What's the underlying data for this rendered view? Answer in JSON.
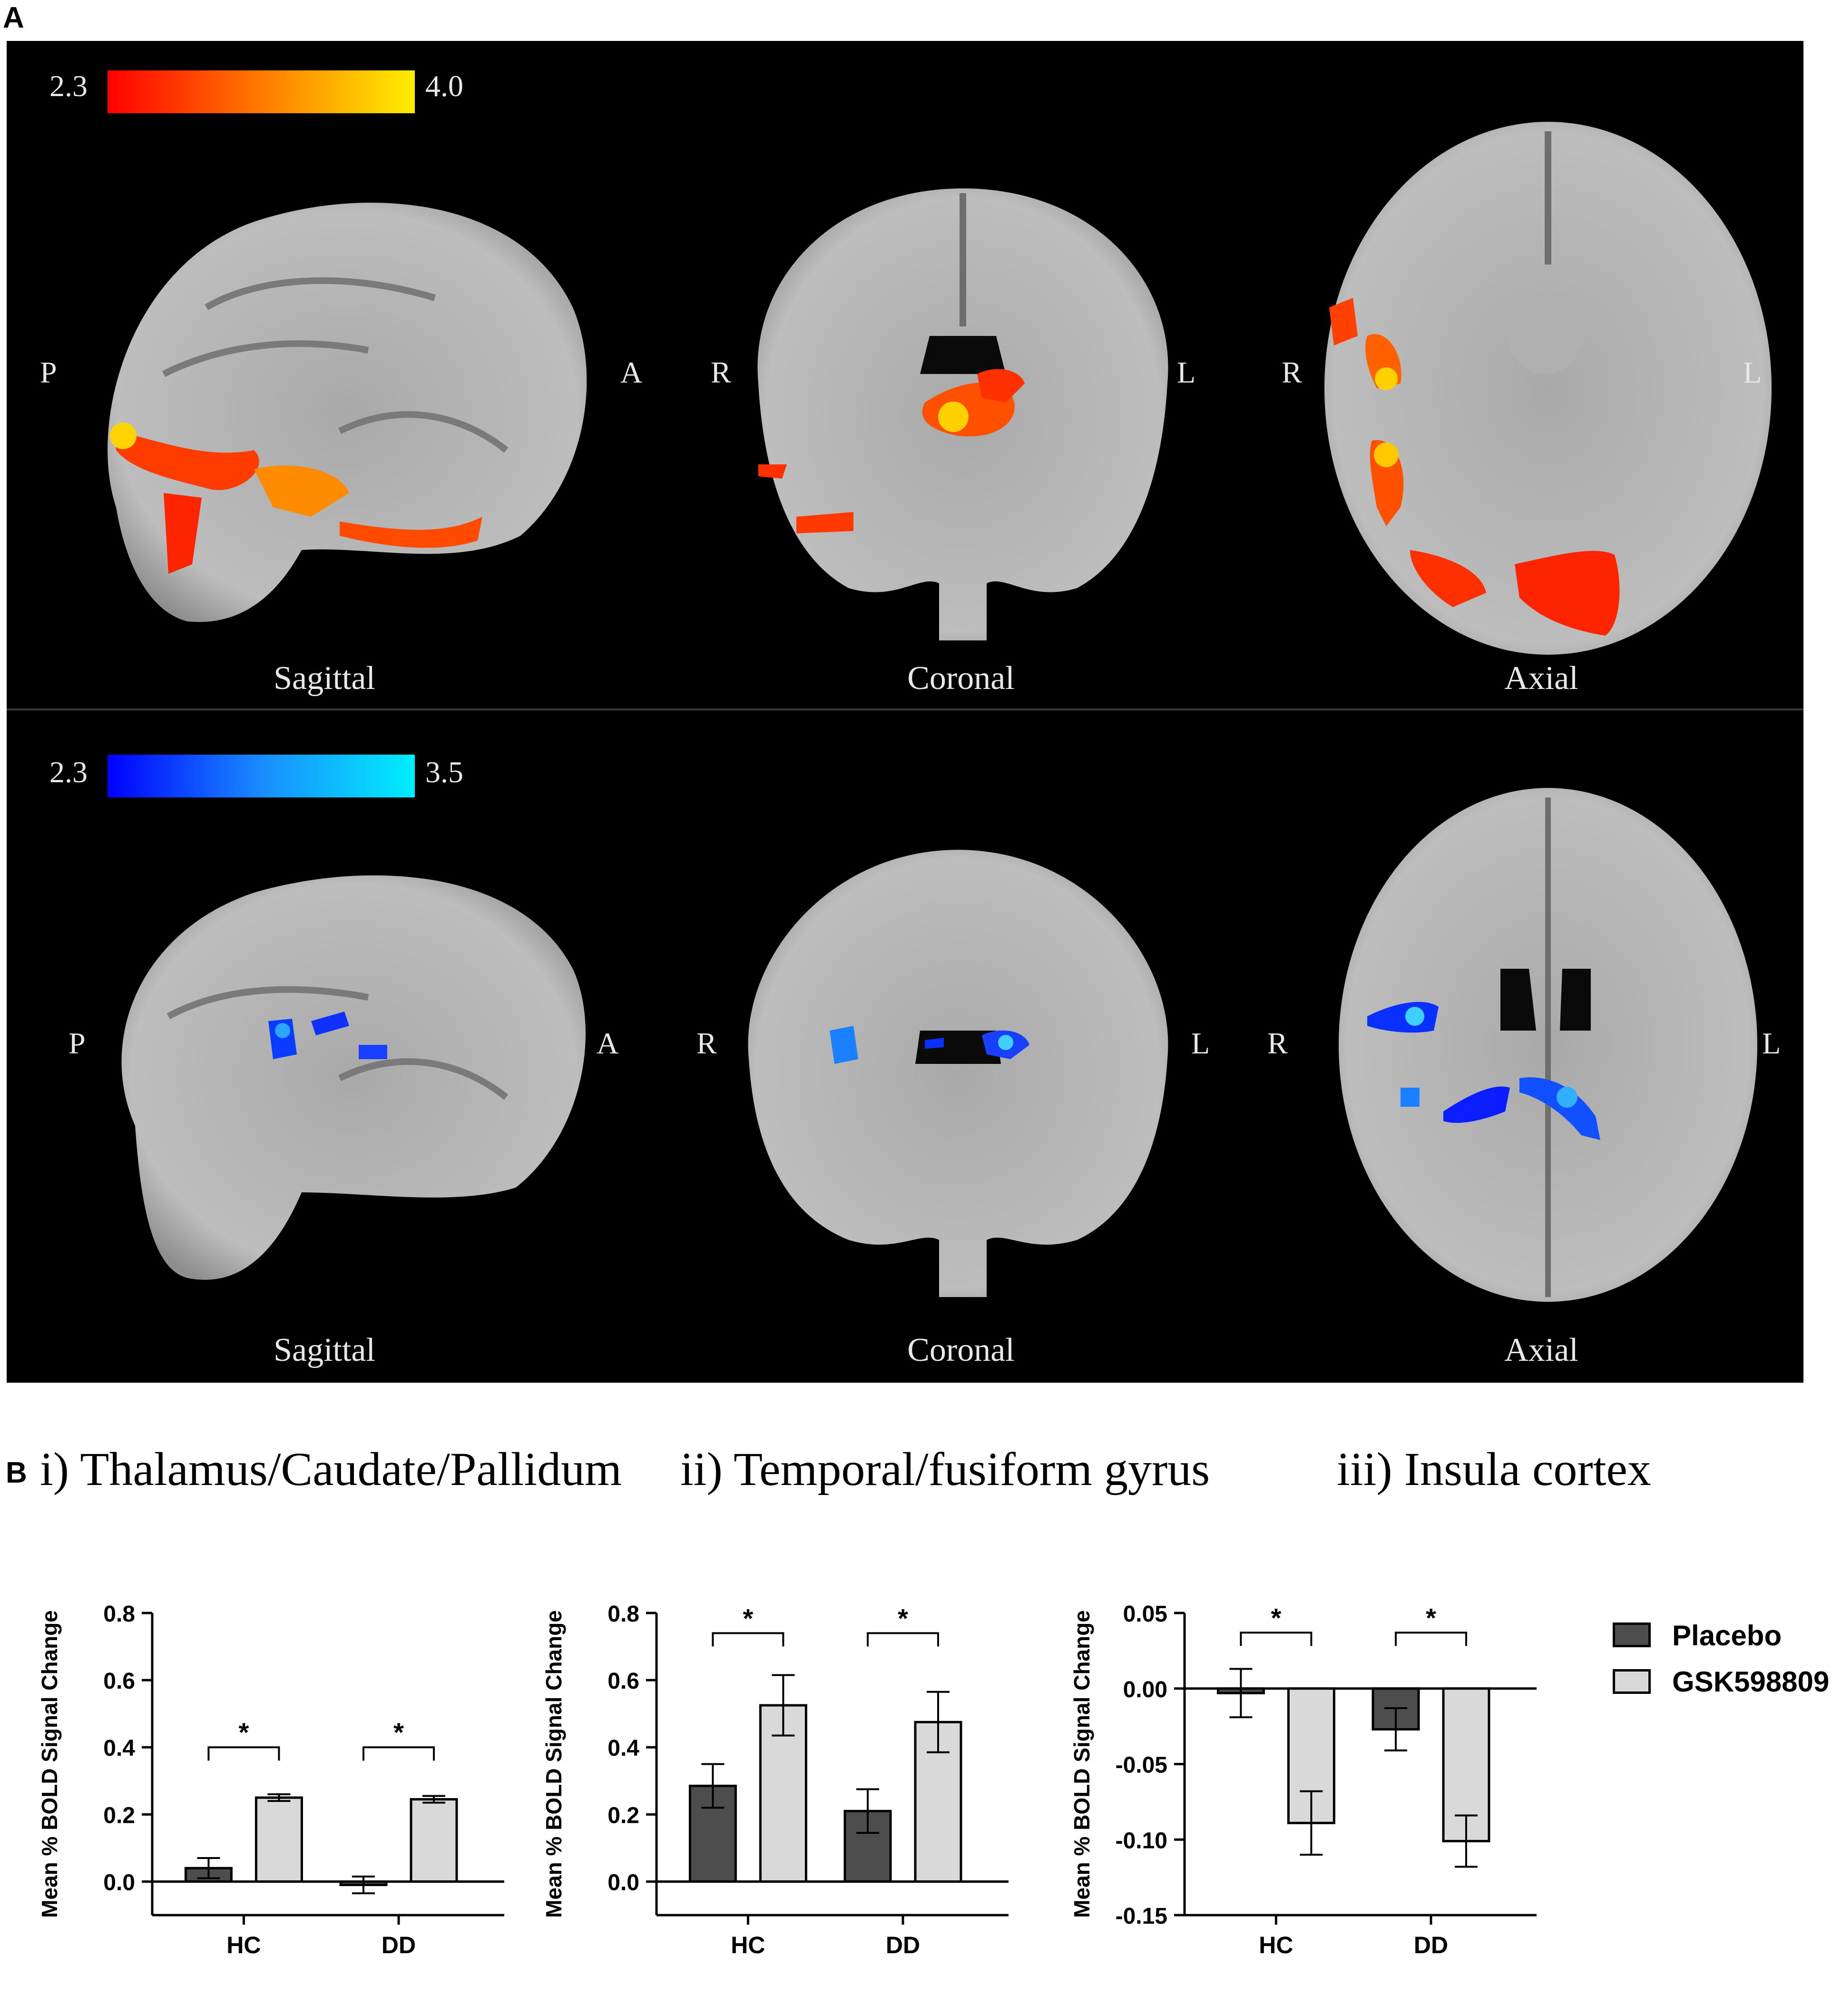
{
  "panel_a": {
    "letter": "A",
    "colorbar_top": {
      "min": "2.3",
      "max": "4.0",
      "colors": [
        "#ff0000",
        "#ff7a00",
        "#ffee00"
      ]
    },
    "colorbar_bottom": {
      "min": "2.3",
      "max": "3.5",
      "colors": [
        "#0000ff",
        "#1a8cff",
        "#00eeff"
      ]
    },
    "views": {
      "sagittal": "Sagittal",
      "coronal": "Coronal",
      "axial": "Axial"
    },
    "orient": {
      "p": "P",
      "a": "A",
      "r": "R",
      "l": "L"
    }
  },
  "panel_b": {
    "letter": "B",
    "titles": [
      "i) Thalamus/Caudate/Pallidum",
      "ii) Temporal/fusiform gyrus",
      "iii) Insula cortex"
    ],
    "legend": [
      {
        "label": "Placebo",
        "color": "#4d4d4d"
      },
      {
        "label": "GSK598809",
        "color": "#d9d9d9"
      }
    ]
  },
  "chart_data": [
    {
      "type": "bar",
      "title": "i) Thalamus/Caudate/Pallidum",
      "ylabel": "Mean % BOLD Signal Change",
      "categories": [
        "HC",
        "DD"
      ],
      "ylim": [
        -0.1,
        0.8
      ],
      "yticks": [
        "0.0",
        "0.2",
        "0.4",
        "0.6",
        "0.8"
      ],
      "series": [
        {
          "name": "Placebo",
          "values": [
            0.04,
            -0.01
          ],
          "errors": [
            0.03,
            0.025
          ]
        },
        {
          "name": "GSK598809",
          "values": [
            0.25,
            0.245
          ],
          "errors": [
            0.01,
            0.01
          ]
        }
      ],
      "significance": [
        "*",
        "*"
      ],
      "sig_level": 0.4
    },
    {
      "type": "bar",
      "title": "ii) Temporal/fusiform gyrus",
      "ylabel": "Mean % BOLD Signal Change",
      "categories": [
        "HC",
        "DD"
      ],
      "ylim": [
        -0.1,
        0.8
      ],
      "yticks": [
        "0.0",
        "0.2",
        "0.4",
        "0.6",
        "0.8"
      ],
      "series": [
        {
          "name": "Placebo",
          "values": [
            0.285,
            0.21
          ],
          "errors": [
            0.065,
            0.065
          ]
        },
        {
          "name": "GSK598809",
          "values": [
            0.525,
            0.475
          ],
          "errors": [
            0.09,
            0.09
          ]
        }
      ],
      "significance": [
        "*",
        "*"
      ],
      "sig_level": 0.74
    },
    {
      "type": "bar",
      "title": "iii) Insula cortex",
      "ylabel": "Mean % BOLD Signal Change",
      "categories": [
        "HC",
        "DD"
      ],
      "ylim": [
        -0.15,
        0.05
      ],
      "yticks": [
        "-0.15",
        "-0.10",
        "-0.05",
        "0.00",
        "0.05"
      ],
      "series": [
        {
          "name": "Placebo",
          "values": [
            -0.003,
            -0.027
          ],
          "errors": [
            0.016,
            0.014
          ]
        },
        {
          "name": "GSK598809",
          "values": [
            -0.089,
            -0.101
          ],
          "errors": [
            0.021,
            0.017
          ]
        }
      ],
      "significance": [
        "*",
        "*"
      ],
      "sig_level": 0.037
    }
  ]
}
